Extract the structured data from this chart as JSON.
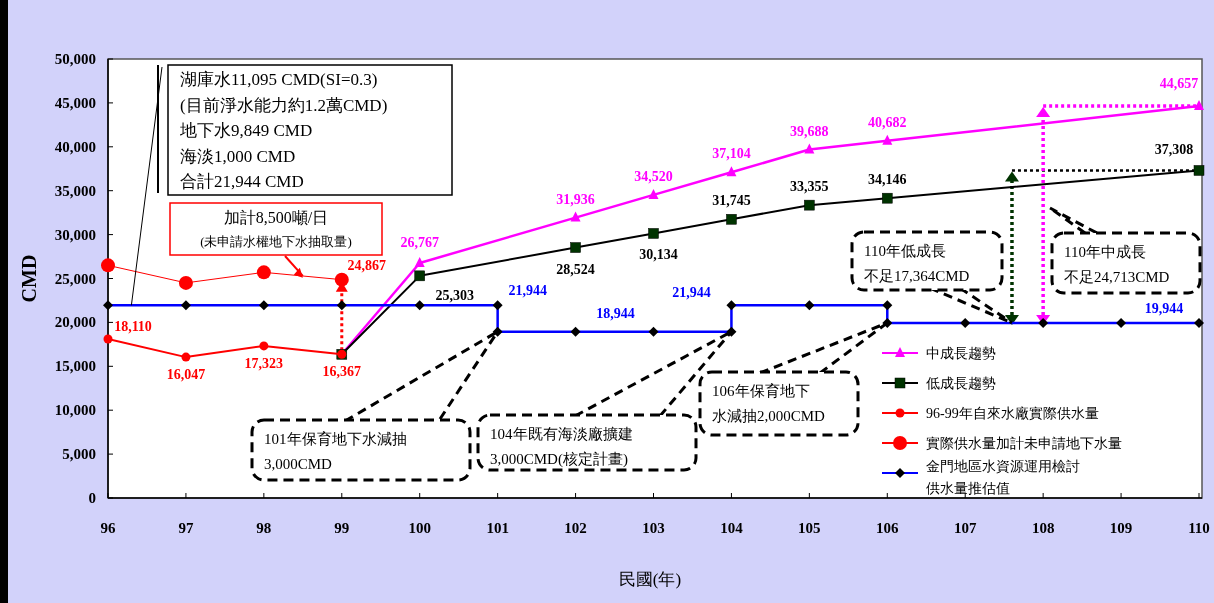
{
  "chart_data": {
    "type": "line",
    "xlabel": "民國(年)",
    "ylabel": "CMD",
    "xlim": [
      96,
      110
    ],
    "xticks": [
      96,
      97,
      98,
      99,
      100,
      101,
      102,
      103,
      104,
      105,
      106,
      107,
      108,
      109,
      110
    ],
    "ylim": [
      0,
      50000
    ],
    "yticks": [
      0,
      {
        "value": 5000,
        "label": "5,000"
      },
      {
        "value": 10000,
        "label": "10,000"
      },
      {
        "value": 15000,
        "label": "15,000"
      },
      {
        "value": 20000,
        "label": "20,000"
      },
      {
        "value": 25000,
        "label": "25,000"
      },
      {
        "value": 30000,
        "label": "30,000"
      },
      {
        "value": 35000,
        "label": "35,000"
      },
      {
        "value": 40000,
        "label": "40,000"
      },
      {
        "value": 45000,
        "label": "45,000"
      },
      {
        "value": 50000,
        "label": "50,000"
      }
    ],
    "grid": false,
    "legend": "bottom right",
    "line_style": "solid",
    "series": [
      {
        "name": "中成長趨勢",
        "color": "#ff00ff",
        "marker": "triangle",
        "x": [
          99,
          100,
          102,
          103,
          104,
          105,
          106,
          110
        ],
        "values": [
          16367,
          26767,
          31936,
          34520,
          37104,
          39688,
          40682,
          44657
        ],
        "value_labels": [
          null,
          "26,767",
          "31,936",
          "34,520",
          "37,104",
          "39,688",
          "40,682",
          "44,657"
        ]
      },
      {
        "name": "低成長趨勢",
        "color": "#003300",
        "marker": "square",
        "x": [
          99,
          100,
          102,
          103,
          104,
          105,
          106,
          110
        ],
        "values": [
          16367,
          25303,
          28524,
          30134,
          31745,
          33355,
          34146,
          37308
        ],
        "value_labels": [
          null,
          "25,303",
          "28,524",
          "30,134",
          "31,745",
          "33,355",
          "34,146",
          "37,308"
        ]
      },
      {
        "name": "96-99年自來水廠實際供水量",
        "color": "#ff0000",
        "marker": "circle",
        "x": [
          96,
          97,
          98,
          99
        ],
        "values": [
          18110,
          16047,
          17323,
          16367
        ],
        "value_labels": [
          "18,110",
          "16,047",
          "17,323",
          "16,367"
        ]
      },
      {
        "name": "實際供水量加計未申請地下水量",
        "color": "#ff0000",
        "marker": "circle",
        "x": [
          96,
          97,
          98,
          99
        ],
        "values": [
          26500,
          24500,
          25700,
          24867
        ],
        "value_labels": [
          null,
          null,
          null,
          "24,867"
        ]
      },
      {
        "name": "金門地區水資源運用檢討供水量推估值",
        "color": "#0000ff",
        "marker": "diamond",
        "x": [
          96,
          97,
          98,
          99,
          100,
          101,
          101,
          102,
          103,
          104,
          104,
          105,
          106,
          106,
          107,
          108,
          109,
          110
        ],
        "values": [
          21944,
          21944,
          21944,
          21944,
          21944,
          21944,
          18944,
          18944,
          18944,
          18944,
          21944,
          21944,
          21944,
          19944,
          19944,
          19944,
          19944,
          19944
        ],
        "value_labels": [
          null,
          null,
          null,
          null,
          null,
          "21,944",
          null,
          "18,944",
          null,
          null,
          "21,944",
          null,
          null,
          null,
          null,
          null,
          null,
          "19,944"
        ]
      }
    ],
    "annotations": [
      {
        "text": "湖庫水11,095 CMD(SI=0.3)\n(目前淨水能力約1.2萬CMD)\n地下水9,849 CMD\n海淡1,000 CMD\n合計21,944 CMD",
        "x": 96.3,
        "y": 21944
      },
      {
        "text": "加計8,500噸/日\n(未申請水權地下水抽取量)",
        "x": 98.5,
        "y": 25300
      },
      {
        "text": "101年保育地下水減抽\n3,000CMD",
        "x": 101,
        "y": 18944
      },
      {
        "text": "104年既有海淡廠擴建\n3,000CMD(核定計畫)",
        "x": 104,
        "y": 18944
      },
      {
        "text": "106年保育地下水減抽2,000CMD",
        "x": 106,
        "y": 19944
      },
      {
        "text": "110年低成長不足17,364CMD",
        "x": 107.6,
        "y": 19944
      },
      "110年中成長不足24,713CMD"
    ]
  }
}
